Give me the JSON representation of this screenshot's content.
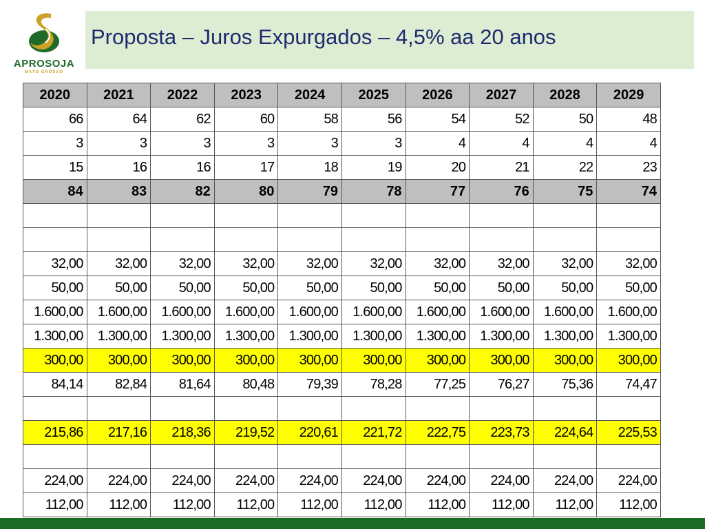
{
  "logo": {
    "name": "APROSOJA",
    "subtitle": "MATO GROSSO"
  },
  "title": "Proposta – Juros Expurgados – 4,5% aa 20 anos",
  "colors": {
    "title_band": "#dcedd3",
    "title_text": "#1d2b6e",
    "header_gray": "#bfbfbf",
    "highlight_yellow": "#ffff00",
    "footer_green": "#1e6b26"
  },
  "table": {
    "headers": [
      "2020",
      "2021",
      "2022",
      "2023",
      "2024",
      "2025",
      "2026",
      "2027",
      "2028",
      "2029"
    ],
    "rows": [
      {
        "style": "normal",
        "cells": [
          "66",
          "64",
          "62",
          "60",
          "58",
          "56",
          "54",
          "52",
          "50",
          "48"
        ]
      },
      {
        "style": "normal",
        "cells": [
          "3",
          "3",
          "3",
          "3",
          "3",
          "3",
          "4",
          "4",
          "4",
          "4"
        ]
      },
      {
        "style": "normal",
        "cells": [
          "15",
          "16",
          "16",
          "17",
          "18",
          "19",
          "20",
          "21",
          "22",
          "23"
        ]
      },
      {
        "style": "bold-gray",
        "cells": [
          "84",
          "83",
          "82",
          "80",
          "79",
          "78",
          "77",
          "76",
          "75",
          "74"
        ]
      },
      {
        "style": "empty",
        "cells": [
          "",
          "",
          "",
          "",
          "",
          "",
          "",
          "",
          "",
          ""
        ]
      },
      {
        "style": "empty",
        "cells": [
          "",
          "",
          "",
          "",
          "",
          "",
          "",
          "",
          "",
          ""
        ]
      },
      {
        "style": "normal",
        "cells": [
          "32,00",
          "32,00",
          "32,00",
          "32,00",
          "32,00",
          "32,00",
          "32,00",
          "32,00",
          "32,00",
          "32,00"
        ]
      },
      {
        "style": "normal",
        "cells": [
          "50,00",
          "50,00",
          "50,00",
          "50,00",
          "50,00",
          "50,00",
          "50,00",
          "50,00",
          "50,00",
          "50,00"
        ]
      },
      {
        "style": "normal",
        "cells": [
          "1.600,00",
          "1.600,00",
          "1.600,00",
          "1.600,00",
          "1.600,00",
          "1.600,00",
          "1.600,00",
          "1.600,00",
          "1.600,00",
          "1.600,00"
        ]
      },
      {
        "style": "normal",
        "cells": [
          "1.300,00",
          "1.300,00",
          "1.300,00",
          "1.300,00",
          "1.300,00",
          "1.300,00",
          "1.300,00",
          "1.300,00",
          "1.300,00",
          "1.300,00"
        ]
      },
      {
        "style": "yellow",
        "cells": [
          "300,00",
          "300,00",
          "300,00",
          "300,00",
          "300,00",
          "300,00",
          "300,00",
          "300,00",
          "300,00",
          "300,00"
        ]
      },
      {
        "style": "normal",
        "cells": [
          "84,14",
          "82,84",
          "81,64",
          "80,48",
          "79,39",
          "78,28",
          "77,25",
          "76,27",
          "75,36",
          "74,47"
        ]
      },
      {
        "style": "empty",
        "cells": [
          "",
          "",
          "",
          "",
          "",
          "",
          "",
          "",
          "",
          ""
        ]
      },
      {
        "style": "yellow",
        "cells": [
          "215,86",
          "217,16",
          "218,36",
          "219,52",
          "220,61",
          "221,72",
          "222,75",
          "223,73",
          "224,64",
          "225,53"
        ]
      },
      {
        "style": "empty",
        "cells": [
          "",
          "",
          "",
          "",
          "",
          "",
          "",
          "",
          "",
          ""
        ]
      },
      {
        "style": "normal",
        "cells": [
          "224,00",
          "224,00",
          "224,00",
          "224,00",
          "224,00",
          "224,00",
          "224,00",
          "224,00",
          "224,00",
          "224,00"
        ]
      },
      {
        "style": "normal",
        "cells": [
          "112,00",
          "112,00",
          "112,00",
          "112,00",
          "112,00",
          "112,00",
          "112,00",
          "112,00",
          "112,00",
          "112,00"
        ]
      }
    ]
  }
}
